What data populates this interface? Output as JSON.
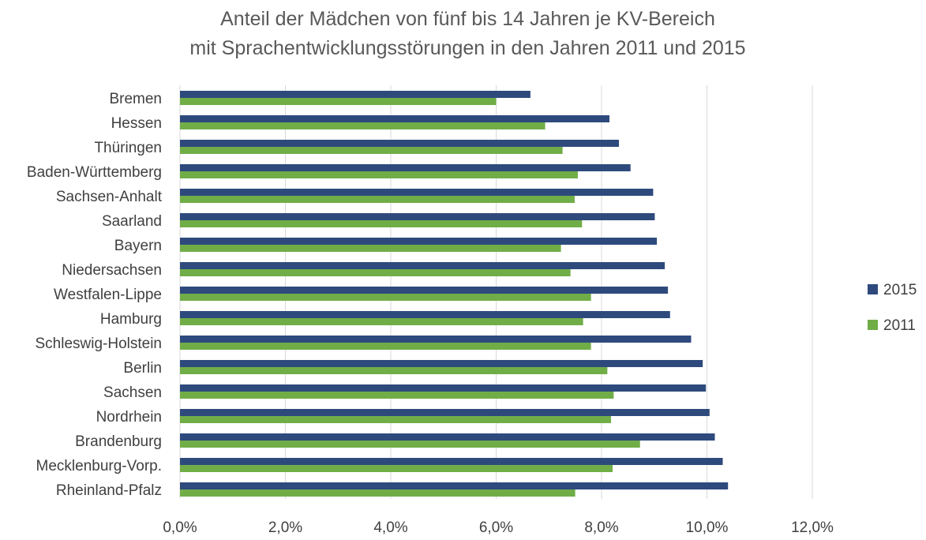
{
  "chart_data": {
    "type": "bar",
    "orientation": "horizontal",
    "title": "Anteil der Mädchen von fünf bis 14 Jahren je KV-Bereich",
    "subtitle": "mit Sprachentwicklungsstörungen in den Jahren 2011 und 2015",
    "xlabel": "",
    "ylabel": "",
    "xlim": [
      0,
      12
    ],
    "xticks": [
      "0,0%",
      "2,0%",
      "4,0%",
      "6,0%",
      "8,0%",
      "10,0%",
      "12,0%"
    ],
    "grid": true,
    "legend_position": "right",
    "categories": [
      "Bremen",
      "Hessen",
      "Thüringen",
      "Baden-Württemberg",
      "Sachsen-Anhalt",
      "Saarland",
      "Bayern",
      "Niedersachsen",
      "Westfalen-Lippe",
      "Hamburg",
      "Schleswig-Holstein",
      "Berlin",
      "Sachsen",
      "Nordrhein",
      "Brandenburg",
      "Mecklenburg-Vorp.",
      "Rheinland-Pfalz"
    ],
    "series": [
      {
        "name": "2015",
        "color": "#2e4a7d",
        "values": [
          6.65,
          8.15,
          8.33,
          8.55,
          8.98,
          9.01,
          9.05,
          9.2,
          9.26,
          9.3,
          9.7,
          9.92,
          9.98,
          10.05,
          10.15,
          10.3,
          10.4
        ]
      },
      {
        "name": "2011",
        "color": "#70ad47",
        "values": [
          6.0,
          6.93,
          7.26,
          7.55,
          7.49,
          7.63,
          7.23,
          7.41,
          7.8,
          7.65,
          7.8,
          8.11,
          8.23,
          8.18,
          8.73,
          8.21,
          7.5
        ]
      }
    ]
  }
}
